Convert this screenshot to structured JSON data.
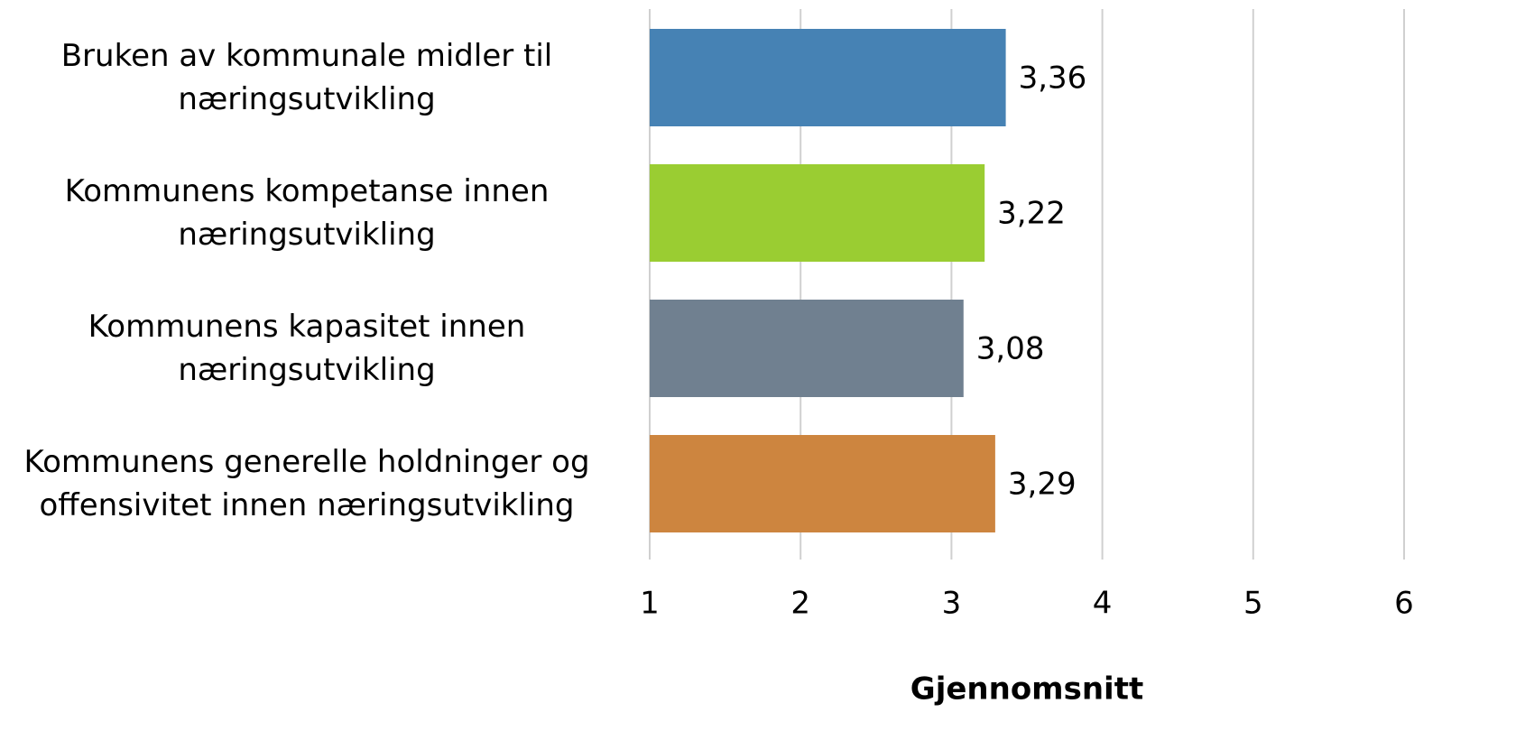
{
  "chart_data": {
    "type": "barh",
    "x_label": "Gjennomsnitt",
    "categories": [
      "Bruken av kommunale midler til\nnæringsutvikling",
      "Kommunens kompetanse innen\nnæringsutvikling",
      "Kommunens kapasitet innen\nnæringsutvikling",
      "Kommunens generelle holdninger og\noffensivitet innen næringsutvikling"
    ],
    "values": [
      3.36,
      3.22,
      3.08,
      3.29
    ],
    "value_labels": [
      "3,36",
      "3,22",
      "3,08",
      "3,29"
    ],
    "colors": [
      "#4682b4",
      "#9acd32",
      "#708090",
      "#cd853f"
    ],
    "xlim": [
      1,
      6
    ],
    "xticks": [
      1,
      2,
      3,
      4,
      5,
      6
    ],
    "grid": true
  }
}
